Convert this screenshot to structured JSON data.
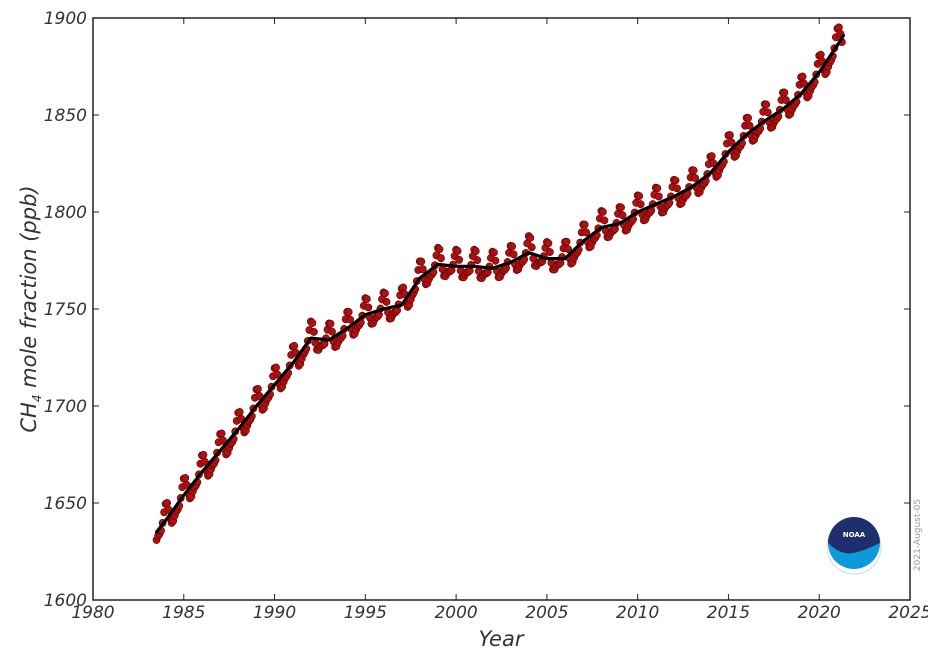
{
  "chart_data": {
    "type": "line",
    "title": "",
    "xlabel": "Year",
    "ylabel_main": "CH",
    "ylabel_sub": "4",
    "ylabel_rest": " mole fraction (ppb)",
    "xlim": [
      1980,
      2025
    ],
    "ylim": [
      1600,
      1900
    ],
    "xticks": [
      1980,
      1985,
      1990,
      1995,
      2000,
      2005,
      2010,
      2015,
      2020,
      2025
    ],
    "yticks": [
      1600,
      1650,
      1700,
      1750,
      1800,
      1850,
      1900
    ],
    "grid": false,
    "legend": "none",
    "date_stamp": "2021-August-05",
    "logo": "NOAA",
    "series": [
      {
        "kind": "monthly-means",
        "marker": "circle-with-error-bars",
        "color": "#b01010",
        "x_start": 1983.5,
        "x_end": 2021.33,
        "seasonal_amplitude_ppb": 9
      },
      {
        "kind": "trend",
        "color": "#000000",
        "x": [
          1983.5,
          1984,
          1985,
          1986,
          1987,
          1988,
          1989,
          1990,
          1991,
          1992,
          1993,
          1994,
          1995,
          1996,
          1997,
          1998,
          1999,
          2000,
          2001,
          2002,
          2003,
          2004,
          2005,
          2006,
          2007,
          2008,
          2009,
          2010,
          2011,
          2012,
          2013,
          2014,
          2015,
          2016,
          2017,
          2018,
          2019,
          2020,
          2021,
          2021.33
        ],
        "y": [
          1635,
          1641,
          1654,
          1666,
          1677,
          1688,
          1700,
          1711,
          1722,
          1735,
          1734,
          1740,
          1747,
          1750,
          1752,
          1766,
          1773,
          1772,
          1772,
          1771,
          1774,
          1779,
          1776,
          1776,
          1785,
          1792,
          1794,
          1800,
          1804,
          1808,
          1813,
          1820,
          1831,
          1840,
          1847,
          1853,
          1861,
          1872,
          1886,
          1891
        ]
      }
    ]
  }
}
